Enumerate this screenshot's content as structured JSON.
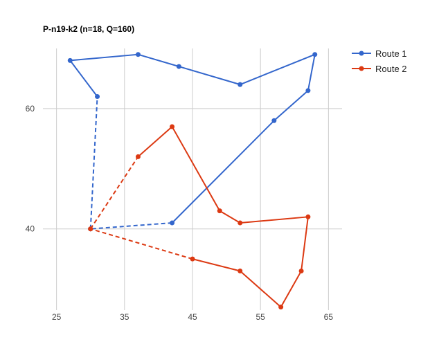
{
  "chart_data": {
    "type": "line",
    "title": "P-n19-k2 (n=18, Q=160)",
    "xlabel": "",
    "ylabel": "",
    "xlim": [
      23,
      67
    ],
    "ylim": [
      26.5,
      70
    ],
    "x_ticks": [
      25,
      35,
      45,
      55,
      65
    ],
    "y_ticks": [
      40,
      60
    ],
    "grid": true,
    "legend_position": "right-top",
    "depot": [
      30,
      40
    ],
    "series": [
      {
        "name": "Route 1",
        "color": "#3366cc",
        "points": [
          [
            30,
            40
          ],
          [
            31,
            62
          ],
          [
            27,
            68
          ],
          [
            37,
            69
          ],
          [
            43,
            67
          ],
          [
            52,
            64
          ],
          [
            63,
            69
          ],
          [
            62,
            63
          ],
          [
            57,
            58
          ],
          [
            42,
            41
          ],
          [
            30,
            40
          ]
        ],
        "dashed_segments": [
          0,
          9
        ]
      },
      {
        "name": "Route 2",
        "color": "#dc3912",
        "points": [
          [
            30,
            40
          ],
          [
            37,
            52
          ],
          [
            42,
            57
          ],
          [
            49,
            43
          ],
          [
            52,
            41
          ],
          [
            62,
            42
          ],
          [
            61,
            33
          ],
          [
            58,
            27
          ],
          [
            52,
            33
          ],
          [
            45,
            35
          ],
          [
            30,
            40
          ]
        ],
        "dashed_segments": [
          0,
          9
        ]
      }
    ]
  }
}
